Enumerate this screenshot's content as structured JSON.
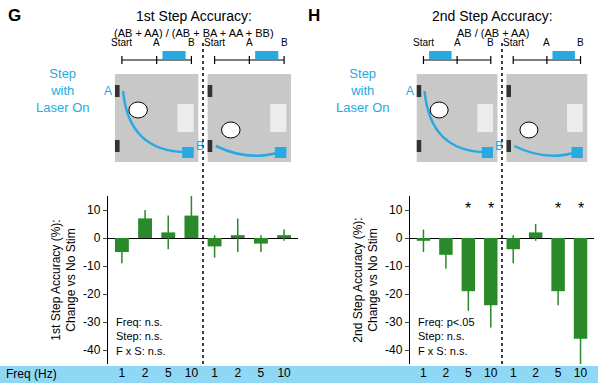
{
  "chart_data": [
    {
      "type": "bar",
      "panel": "G",
      "title": "1st Step Accuracy:",
      "subtitle": "(AB + AA) / (AB + BA + AA + BB)",
      "y_label": [
        "1st Step Accuracy (%):",
        "Change vs No Stim"
      ],
      "x_label": "Freq (Hz)",
      "group_label": [
        "Step",
        "with",
        "Laser On"
      ],
      "timeline": [
        "Start",
        "A",
        "B"
      ],
      "group_arms": [
        "A",
        "B"
      ],
      "categories": [
        "1",
        "2",
        "5",
        "10",
        "1",
        "2",
        "5",
        "10"
      ],
      "values": [
        -5,
        7,
        2,
        8,
        -3,
        1,
        -2,
        1
      ],
      "errors": [
        4,
        3,
        6,
        7,
        4,
        6,
        3,
        2
      ],
      "color": "#2a8a2a",
      "ylim": [
        -45,
        15
      ],
      "yticks": [
        -40,
        -30,
        -20,
        -10,
        0,
        10
      ],
      "stats": [
        "Freq: n.s.",
        "Step: n.s.",
        "F x S: n.s."
      ]
    },
    {
      "type": "bar",
      "panel": "H",
      "title": "2nd Step Accuracy:",
      "subtitle": "AB / (AB + AA)",
      "y_label": [
        "2nd Step Accuracy (%):",
        "Change vs No Stim"
      ],
      "group_label": [
        "Step",
        "with",
        "Laser On"
      ],
      "timeline": [
        "Start",
        "A",
        "B"
      ],
      "group_arms": [
        "A",
        "B"
      ],
      "categories": [
        "1",
        "2",
        "5",
        "10",
        "1",
        "2",
        "5",
        "10"
      ],
      "values": [
        -1,
        -6,
        -19,
        -24,
        -4,
        2,
        -19,
        -36
      ],
      "errors": [
        4,
        5,
        7,
        8,
        5,
        3,
        5,
        9
      ],
      "significance": [
        null,
        null,
        "*",
        "*",
        null,
        null,
        "*",
        "*"
      ],
      "color": "#2a8a2a",
      "ylim": [
        -45,
        15
      ],
      "yticks": [
        -40,
        -30,
        -20,
        -10,
        0,
        10
      ],
      "stats": [
        "Freq: p<.05",
        "Step: n.s.",
        "F x S: n.s."
      ]
    }
  ]
}
